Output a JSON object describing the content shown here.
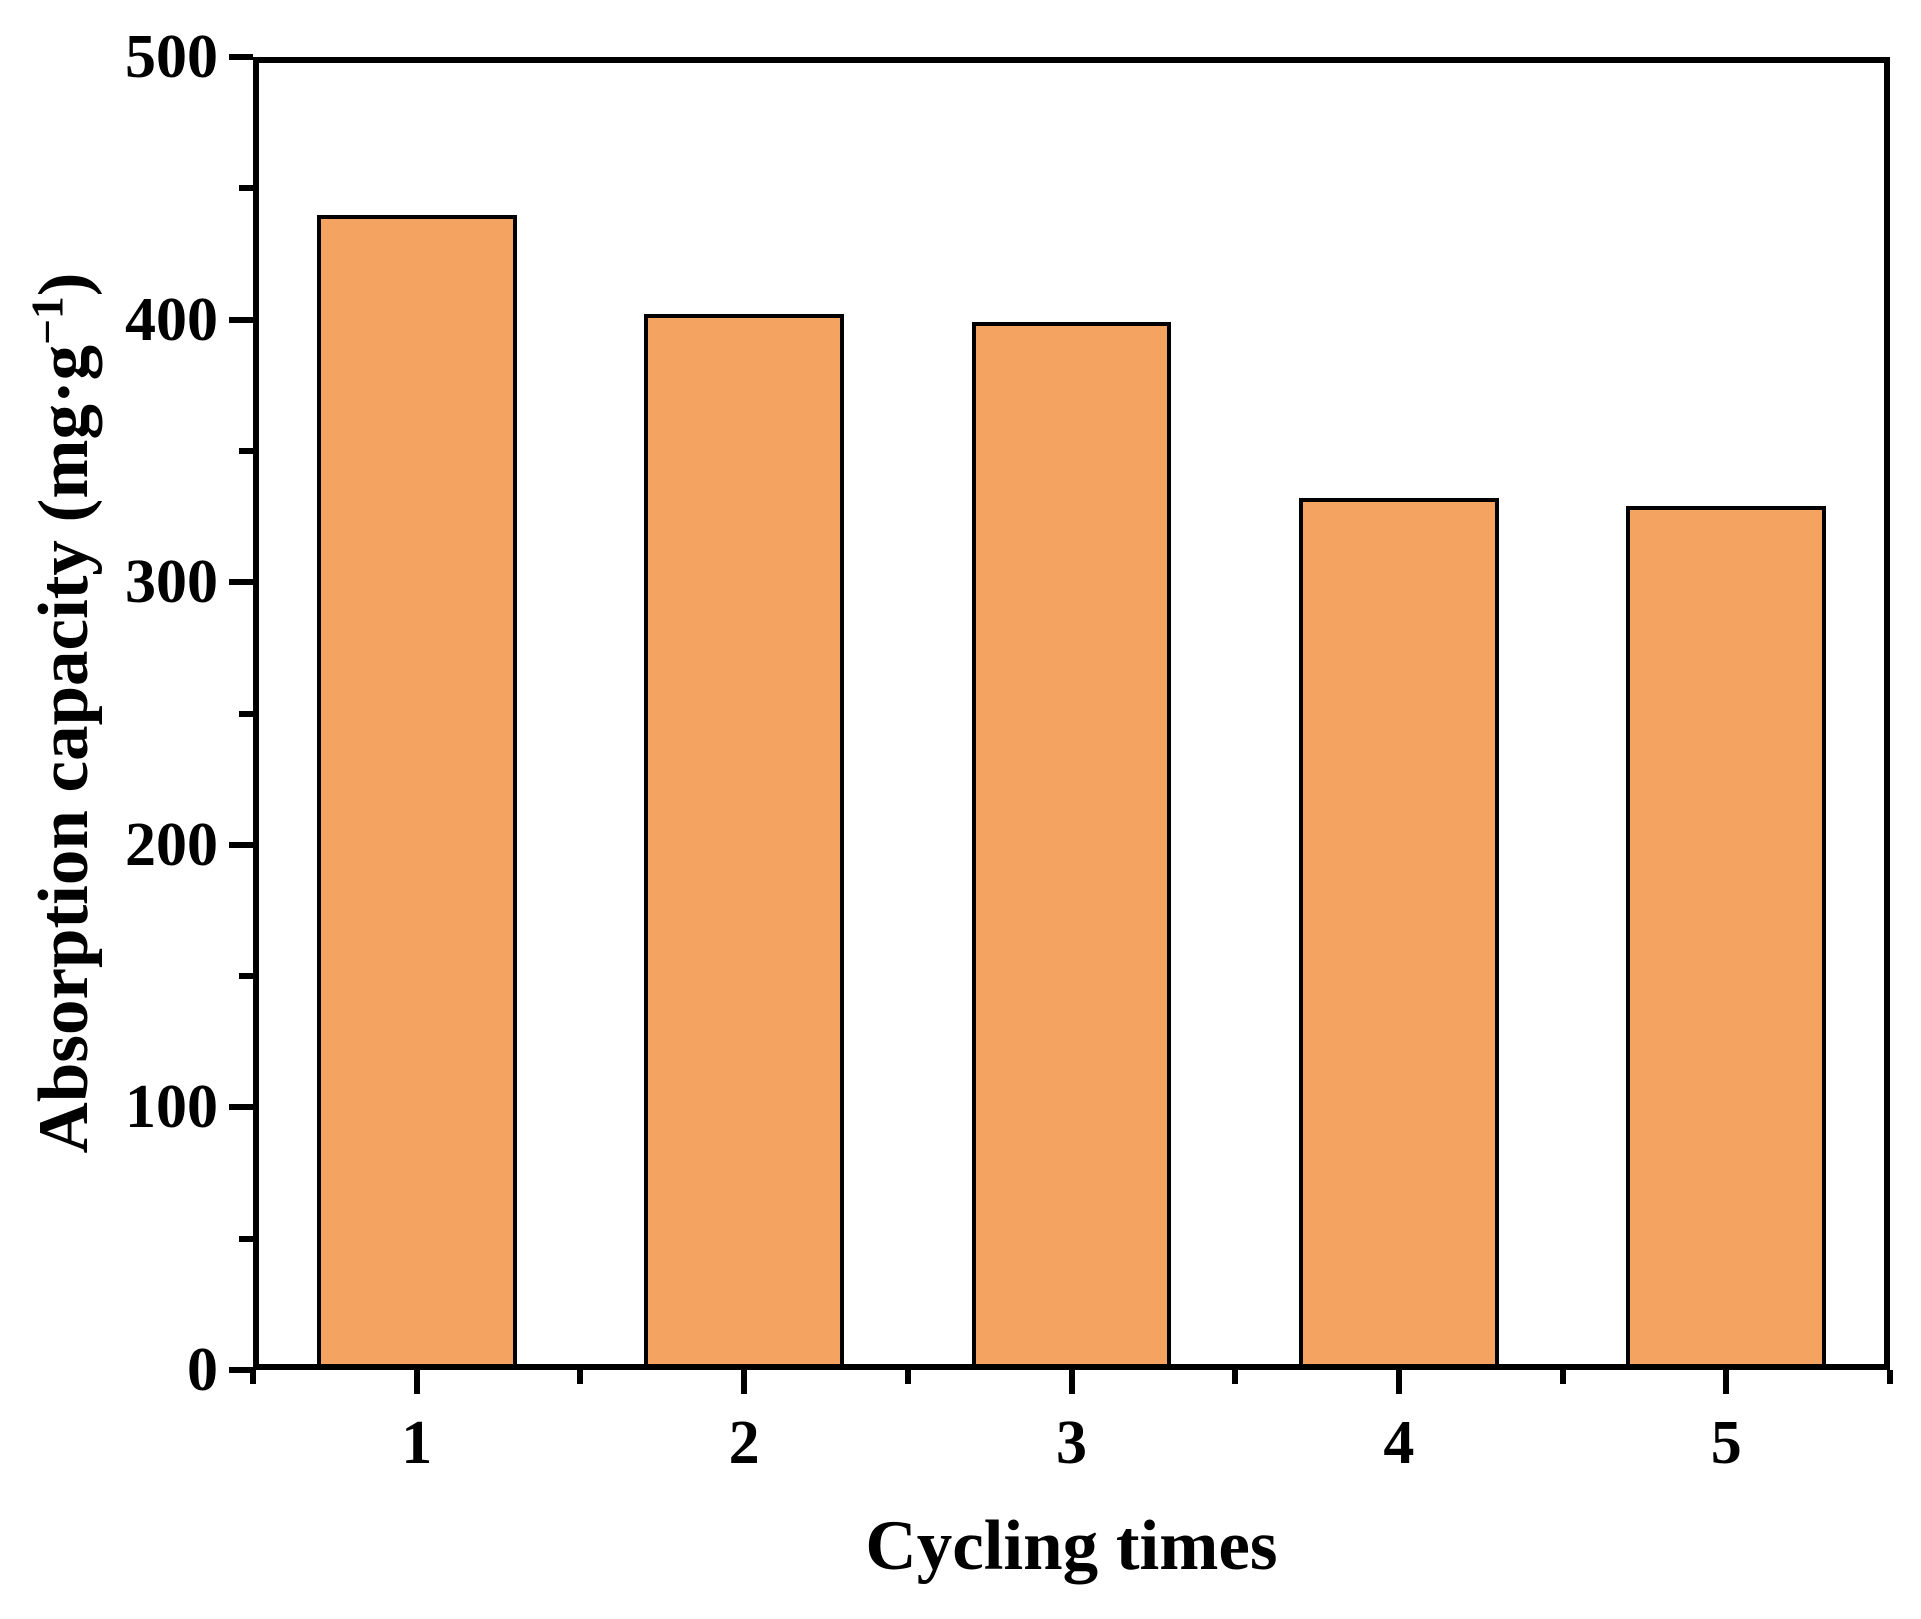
{
  "chart_data": {
    "type": "bar",
    "title": "",
    "categories": [
      "1",
      "2",
      "3",
      "4",
      "5"
    ],
    "values": [
      440,
      402,
      399,
      332,
      329
    ],
    "xlabel": "Cycling times",
    "ylabel": "Absorption capacity (mg·g⁻¹)",
    "ylabel_parts": {
      "pre": "Absorption capacity (mg·g",
      "sup": "−1",
      "post": ")"
    },
    "ylim": [
      0,
      500
    ],
    "y_major_ticks": [
      0,
      100,
      200,
      300,
      400,
      500
    ],
    "y_minor_step": 50,
    "x_minor_at_slot_boundaries": true,
    "grid": false,
    "legend": null,
    "frame": "full-box",
    "bar_width_fraction": 0.61,
    "colors": {
      "bar_fill": "#F4A460",
      "bar_border": "#000000",
      "axis": "#000000",
      "background": "#FFFFFF",
      "text": "#000000"
    }
  }
}
